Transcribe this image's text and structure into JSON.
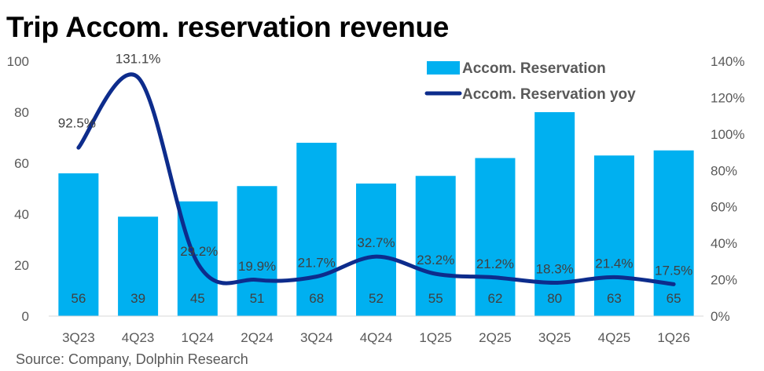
{
  "title": "Trip Accom. reservation revenue",
  "source": "Source: Company, Dolphin Research",
  "chart_data": {
    "type": "bar",
    "categories": [
      "3Q23",
      "4Q23",
      "1Q24",
      "2Q24",
      "3Q24",
      "4Q24",
      "1Q25",
      "2Q25",
      "3Q25",
      "4Q25",
      "1Q26"
    ],
    "series": [
      {
        "name": "Accom. Reservation",
        "type": "bar",
        "axis": "left",
        "values": [
          56,
          39,
          45,
          51,
          68,
          52,
          55,
          62,
          80,
          63,
          65
        ],
        "labels": [
          "56",
          "39",
          "45",
          "51",
          "68",
          "52",
          "55",
          "62",
          "80",
          "63",
          "65"
        ],
        "color": "#00B0F0"
      },
      {
        "name": "Accom. Reservation yoy",
        "type": "line",
        "axis": "right",
        "values": [
          92.5,
          131.1,
          29.2,
          19.9,
          21.7,
          32.7,
          23.2,
          21.2,
          18.3,
          21.4,
          17.5
        ],
        "labels": [
          "92.5%",
          "131.1%",
          "29.2%",
          "19.9%",
          "21.7%",
          "32.7%",
          "23.2%",
          "21.2%",
          "18.3%",
          "21.4%",
          "17.5%"
        ],
        "color": "#0D2C8C"
      }
    ],
    "left_axis": {
      "min": 0,
      "max": 100,
      "ticks": [
        "0",
        "20",
        "40",
        "60",
        "80",
        "100"
      ]
    },
    "right_axis": {
      "min": 0,
      "max": 140,
      "ticks": [
        "0%",
        "20%",
        "40%",
        "60%",
        "80%",
        "100%",
        "120%",
        "140%"
      ]
    },
    "grid": false,
    "legend_position": "top-right"
  }
}
